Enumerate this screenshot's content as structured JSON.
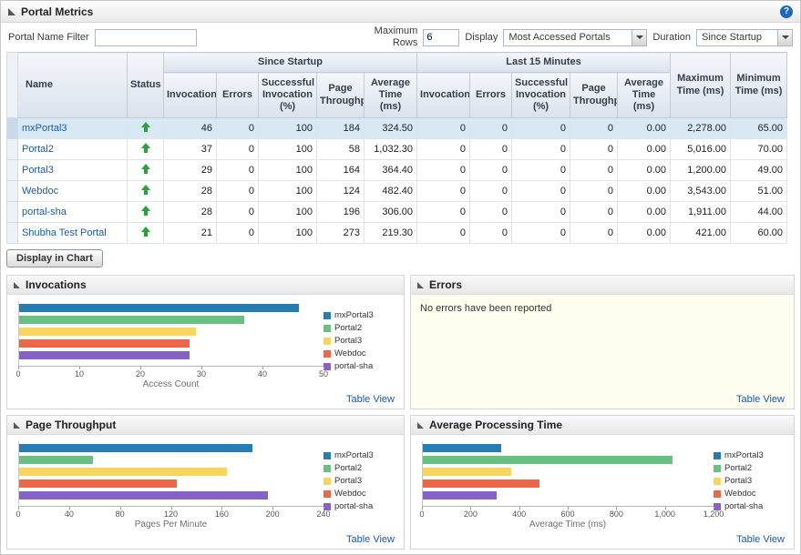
{
  "page": {
    "title": "Portal Metrics"
  },
  "icons": {
    "help_glyph": "?"
  },
  "filters": {
    "portal_name_filter_label": "Portal Name Filter",
    "portal_name_filter_value": "",
    "maximum_rows_label": "Maximum Rows",
    "maximum_rows_value": "6",
    "display_label": "Display",
    "display_value": "Most Accessed Portals",
    "duration_label": "Duration",
    "duration_value": "Since Startup"
  },
  "table": {
    "headers": {
      "name": "Name",
      "status": "Status",
      "since_startup": "Since Startup",
      "last_15": "Last 15 Minutes",
      "invocation": "Invocation",
      "errors": "Errors",
      "successful": "Successful Invocation (%)",
      "page_throughput": "Page Throughput",
      "average_time": "Average Time (ms)",
      "max_time": "Maximum Time (ms)",
      "min_time": "Minimum Time (ms)"
    },
    "rows": [
      {
        "name": "mxPortal3",
        "status": "up",
        "selected": true,
        "cells": [
          "46",
          "0",
          "100",
          "184",
          "324.50",
          "0",
          "0",
          "0",
          "0",
          "0.00",
          "2,278.00",
          "65.00"
        ]
      },
      {
        "name": "Portal2",
        "status": "up",
        "selected": false,
        "cells": [
          "37",
          "0",
          "100",
          "58",
          "1,032.30",
          "0",
          "0",
          "0",
          "0",
          "0.00",
          "5,016.00",
          "70.00"
        ]
      },
      {
        "name": "Portal3",
        "status": "up",
        "selected": false,
        "cells": [
          "29",
          "0",
          "100",
          "164",
          "364.40",
          "0",
          "0",
          "0",
          "0",
          "0.00",
          "1,200.00",
          "49.00"
        ]
      },
      {
        "name": "Webdoc",
        "status": "up",
        "selected": false,
        "cells": [
          "28",
          "0",
          "100",
          "124",
          "482.40",
          "0",
          "0",
          "0",
          "0",
          "0.00",
          "3,543.00",
          "51.00"
        ]
      },
      {
        "name": "portal-sha",
        "status": "up",
        "selected": false,
        "cells": [
          "28",
          "0",
          "100",
          "196",
          "306.00",
          "0",
          "0",
          "0",
          "0",
          "0.00",
          "1,911.00",
          "44.00"
        ]
      },
      {
        "name": "Shubha Test Portal",
        "status": "up",
        "selected": false,
        "cells": [
          "21",
          "0",
          "100",
          "273",
          "219.30",
          "0",
          "0",
          "0",
          "0",
          "0.00",
          "421.00",
          "60.00"
        ]
      }
    ]
  },
  "display_in_chart_label": "Display in Chart",
  "panels": {
    "invocations": {
      "title": "Invocations",
      "table_view": "Table View"
    },
    "errors": {
      "title": "Errors",
      "message": "No errors have been reported",
      "table_view": "Table View"
    },
    "page_throughput": {
      "title": "Page Throughput",
      "table_view": "Table View"
    },
    "average_time": {
      "title": "Average Processing Time",
      "table_view": "Table View"
    }
  },
  "chart_data": [
    {
      "id": "invocations",
      "type": "bar",
      "orientation": "horizontal",
      "title": "Invocations",
      "categories": [
        "mxPortal3",
        "Portal2",
        "Portal3",
        "Webdoc",
        "portal-sha"
      ],
      "values": [
        46,
        37,
        29,
        28,
        28
      ],
      "xlabel": "Access Count",
      "ylabel": "",
      "xlim": [
        0,
        50
      ],
      "ticks": [
        0,
        10,
        20,
        30,
        40,
        50
      ],
      "tick_labels": [
        "0",
        "10",
        "20",
        "30",
        "40",
        "50"
      ],
      "colors": [
        "#267db3",
        "#68c182",
        "#fad55c",
        "#ed6647",
        "#8561c8"
      ],
      "legend_position": "right",
      "grid": false
    },
    {
      "id": "page_throughput",
      "type": "bar",
      "orientation": "horizontal",
      "title": "Page Throughput",
      "categories": [
        "mxPortal3",
        "Portal2",
        "Portal3",
        "Webdoc",
        "portal-sha"
      ],
      "values": [
        184,
        58,
        164,
        124,
        196
      ],
      "xlabel": "Pages Per Minute",
      "ylabel": "",
      "xlim": [
        0,
        240
      ],
      "ticks": [
        0,
        40,
        80,
        120,
        160,
        200,
        240
      ],
      "tick_labels": [
        "0",
        "40",
        "80",
        "120",
        "160",
        "200",
        "240"
      ],
      "colors": [
        "#267db3",
        "#68c182",
        "#fad55c",
        "#ed6647",
        "#8561c8"
      ],
      "legend_position": "right",
      "grid": false
    },
    {
      "id": "average_processing_time",
      "type": "bar",
      "orientation": "horizontal",
      "title": "Average Processing Time",
      "categories": [
        "mxPortal3",
        "Portal2",
        "Portal3",
        "Webdoc",
        "portal-sha"
      ],
      "values": [
        324.5,
        1032.3,
        364.4,
        482.4,
        306.0
      ],
      "xlabel": "Average Time (ms)",
      "ylabel": "",
      "xlim": [
        0,
        1200
      ],
      "ticks": [
        0,
        200,
        400,
        600,
        800,
        1000,
        1200
      ],
      "tick_labels": [
        "0",
        "200",
        "400",
        "600",
        "800",
        "1,000",
        "1,200"
      ],
      "colors": [
        "#267db3",
        "#68c182",
        "#fad55c",
        "#ed6647",
        "#8561c8"
      ],
      "legend_position": "right",
      "grid": false
    }
  ]
}
